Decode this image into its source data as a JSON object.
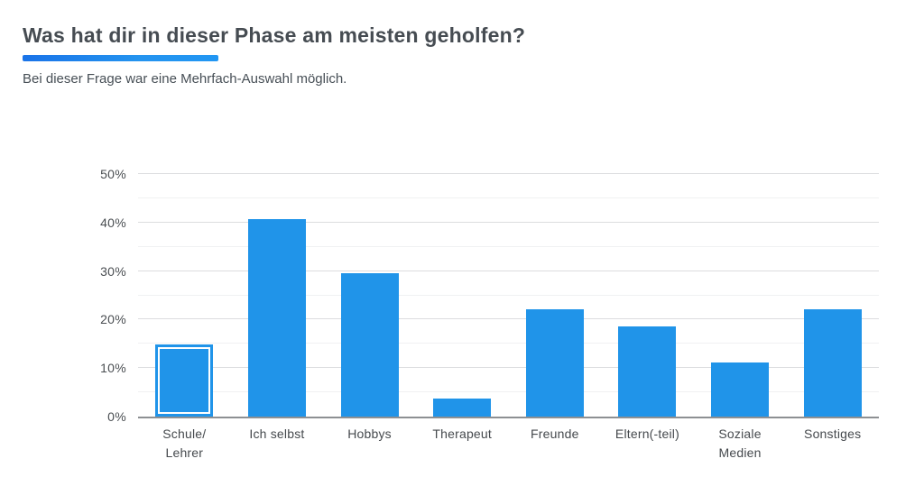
{
  "header": {
    "title": "Was hat dir in dieser Phase am meisten geholfen?",
    "subtitle": "Bei dieser Frage war eine Mehrfach-Auswahl möglich."
  },
  "colors": {
    "bar_fill": "#2094e9",
    "accent_underline_left": "#1a73e8",
    "accent_underline_right": "#2196f3",
    "title_text": "#464c52",
    "axis_text": "#4a4e52",
    "gridline_major": "#dcdddf",
    "gridline_minor": "#f0f1f2",
    "axis_line": "#8d9093",
    "highlight_border": "#ffffff"
  },
  "chart_data": {
    "type": "bar",
    "title": "Was hat dir in dieser Phase am meisten geholfen?",
    "subtitle": "Bei dieser Frage war eine Mehrfach-Auswahl möglich.",
    "categories": [
      [
        "Schule/",
        "Lehrer"
      ],
      [
        "Ich selbst"
      ],
      [
        "Hobbys"
      ],
      [
        "Therapeut"
      ],
      [
        "Freunde"
      ],
      [
        "Eltern(-teil)"
      ],
      [
        "Soziale",
        "Medien"
      ],
      [
        "Sonstiges"
      ]
    ],
    "values": [
      14.8,
      40.7,
      29.6,
      3.7,
      22.2,
      18.5,
      11.1,
      22.2
    ],
    "unit": "%",
    "xlabel": "",
    "ylabel": "",
    "ylim": [
      0,
      50
    ],
    "yticks": [
      "0%",
      "10%",
      "20%",
      "30%",
      "40%",
      "50%"
    ],
    "ytick_major_step": 10,
    "ytick_minor_step": 5,
    "grid": true,
    "legend": false,
    "highlighted_index": 0,
    "highlight_style": "white inner border on bar"
  }
}
